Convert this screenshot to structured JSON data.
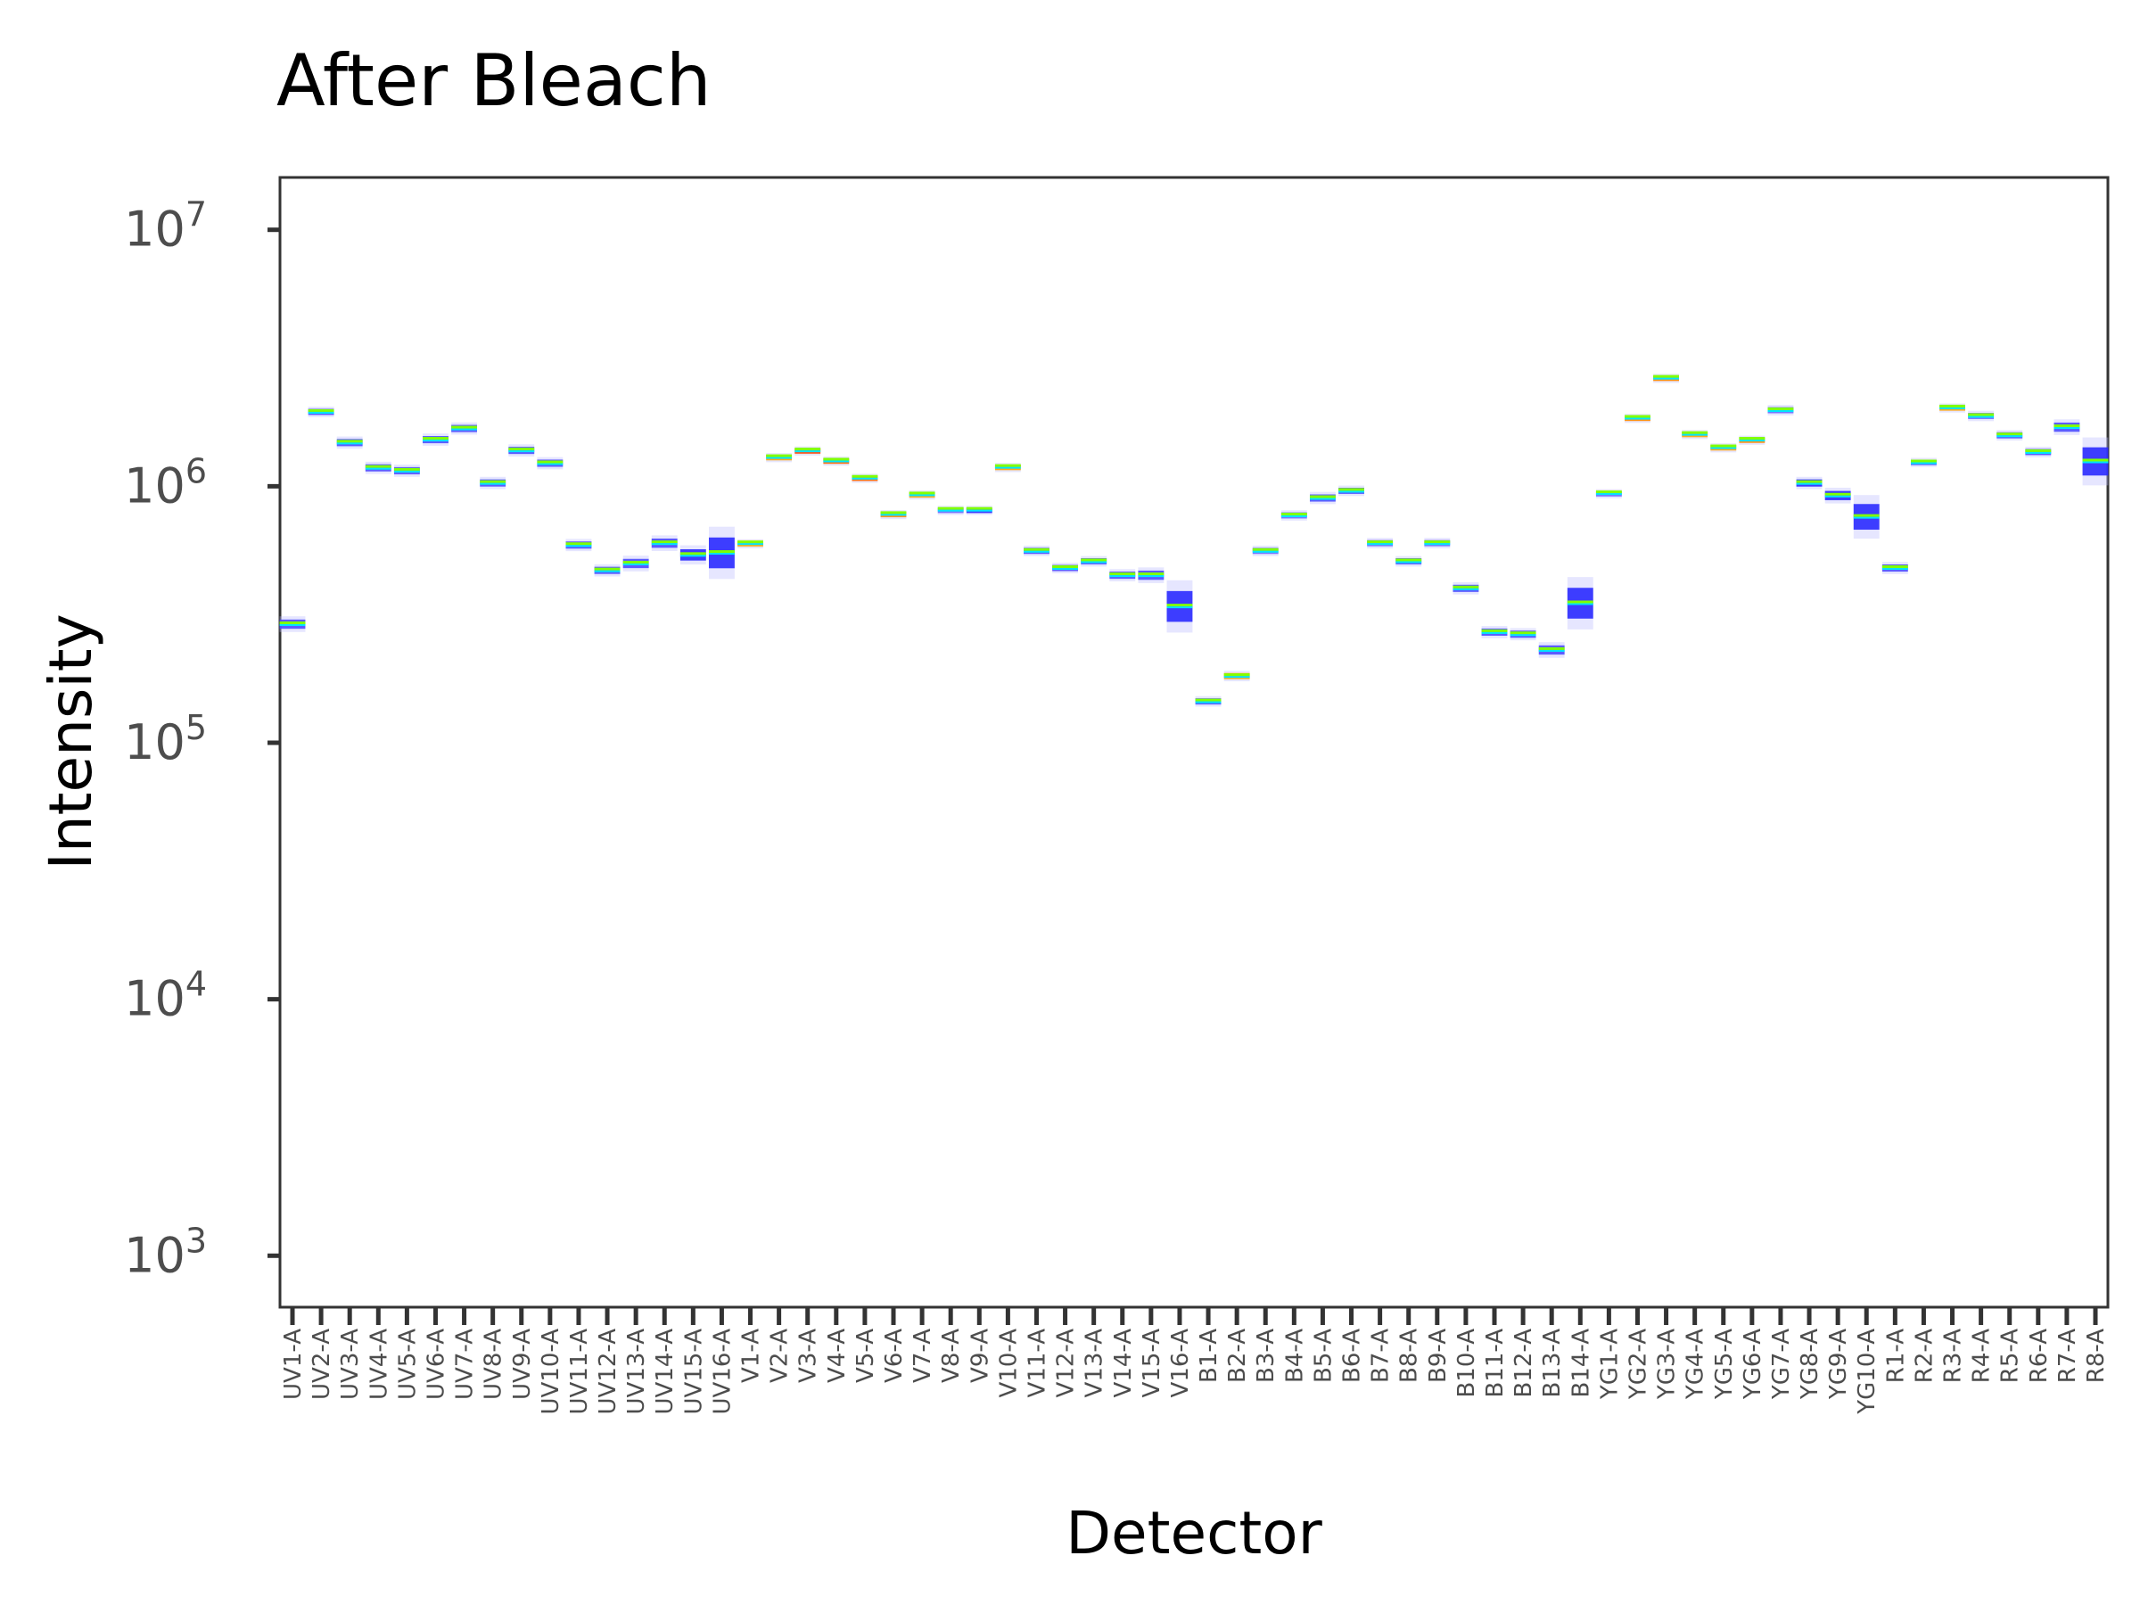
{
  "chart_data": {
    "type": "heatmap",
    "title": "After Bleach",
    "xlabel": "Detector",
    "ylabel": "Intensity",
    "y_scale": "log10",
    "ylim": [
      630,
      16000000
    ],
    "y_ticks": [
      {
        "value": 1000,
        "base": "10",
        "exp": "3"
      },
      {
        "value": 10000,
        "base": "10",
        "exp": "4"
      },
      {
        "value": 100000,
        "base": "10",
        "exp": "5"
      },
      {
        "value": 1000000,
        "base": "10",
        "exp": "6"
      },
      {
        "value": 10000000,
        "base": "10",
        "exp": "7"
      }
    ],
    "palette": {
      "low": "#ffffff",
      "mid1": "#9f9fff",
      "mid2": "#0000ff",
      "high1": "#00ffff",
      "high2": "#7fff00",
      "top1": "#ffa500",
      "top2": "#ff0000"
    },
    "detectors": [
      {
        "name": "UV1-A",
        "median": 290000,
        "spread": 0.018,
        "color": "#4d4dff"
      },
      {
        "name": "UV2-A",
        "median": 1950000,
        "spread": 0.012,
        "color": "#4d4dff"
      },
      {
        "name": "UV3-A",
        "median": 1480000,
        "spread": 0.014,
        "color": "#4d4dff"
      },
      {
        "name": "UV4-A",
        "median": 1180000,
        "spread": 0.014,
        "color": "#4d4dff"
      },
      {
        "name": "UV5-A",
        "median": 1150000,
        "spread": 0.014,
        "color": "#4d4dff"
      },
      {
        "name": "UV6-A",
        "median": 1520000,
        "spread": 0.014,
        "color": "#4d4dff"
      },
      {
        "name": "UV7-A",
        "median": 1680000,
        "spread": 0.014,
        "color": "#4d4dff"
      },
      {
        "name": "UV8-A",
        "median": 1030000,
        "spread": 0.014,
        "color": "#4d4dff"
      },
      {
        "name": "UV9-A",
        "median": 1380000,
        "spread": 0.014,
        "color": "#4d4dff"
      },
      {
        "name": "UV10-A",
        "median": 1230000,
        "spread": 0.014,
        "color": "#4d4dff"
      },
      {
        "name": "UV11-A",
        "median": 590000,
        "spread": 0.014,
        "color": "#4d4dff"
      },
      {
        "name": "UV12-A",
        "median": 470000,
        "spread": 0.014,
        "color": "#4d4dff"
      },
      {
        "name": "UV13-A",
        "median": 500000,
        "spread": 0.018,
        "color": "#4d4dff"
      },
      {
        "name": "UV14-A",
        "median": 600000,
        "spread": 0.018,
        "color": "#4d4dff"
      },
      {
        "name": "UV15-A",
        "median": 540000,
        "spread": 0.022,
        "color": "#2a2aff"
      },
      {
        "name": "UV16-A",
        "median": 550000,
        "spread": 0.06,
        "color": "#2a2aff"
      },
      {
        "name": "V1-A",
        "median": 600000,
        "spread": 0.008,
        "color": "#ffa500"
      },
      {
        "name": "V2-A",
        "median": 1300000,
        "spread": 0.008,
        "color": "#ffa500"
      },
      {
        "name": "V3-A",
        "median": 1380000,
        "spread": 0.008,
        "color": "#ff4500"
      },
      {
        "name": "V4-A",
        "median": 1260000,
        "spread": 0.008,
        "color": "#ff6a00"
      },
      {
        "name": "V5-A",
        "median": 1080000,
        "spread": 0.008,
        "color": "#ff6a00"
      },
      {
        "name": "V6-A",
        "median": 780000,
        "spread": 0.008,
        "color": "#ff8c00"
      },
      {
        "name": "V7-A",
        "median": 930000,
        "spread": 0.008,
        "color": "#ffa500"
      },
      {
        "name": "V8-A",
        "median": 810000,
        "spread": 0.008,
        "color": "#6a6aff"
      },
      {
        "name": "V9-A",
        "median": 810000,
        "spread": 0.008,
        "color": "#2a2aff"
      },
      {
        "name": "V10-A",
        "median": 1190000,
        "spread": 0.008,
        "color": "#ffa500"
      },
      {
        "name": "V11-A",
        "median": 560000,
        "spread": 0.012,
        "color": "#4d4dff"
      },
      {
        "name": "V12-A",
        "median": 480000,
        "spread": 0.012,
        "color": "#4d4dff"
      },
      {
        "name": "V13-A",
        "median": 510000,
        "spread": 0.012,
        "color": "#4d4dff"
      },
      {
        "name": "V14-A",
        "median": 450000,
        "spread": 0.014,
        "color": "#4d4dff"
      },
      {
        "name": "V15-A",
        "median": 450000,
        "spread": 0.018,
        "color": "#4d4dff"
      },
      {
        "name": "V16-A",
        "median": 340000,
        "spread": 0.06,
        "color": "#2a2aff"
      },
      {
        "name": "B1-A",
        "median": 145000,
        "spread": 0.012,
        "color": "#4d4dff"
      },
      {
        "name": "B2-A",
        "median": 182000,
        "spread": 0.012,
        "color": "#ffa500"
      },
      {
        "name": "B3-A",
        "median": 560000,
        "spread": 0.012,
        "color": "#6a6aff"
      },
      {
        "name": "B4-A",
        "median": 770000,
        "spread": 0.012,
        "color": "#6a6aff"
      },
      {
        "name": "B5-A",
        "median": 900000,
        "spread": 0.014,
        "color": "#4d4dff"
      },
      {
        "name": "B6-A",
        "median": 960000,
        "spread": 0.012,
        "color": "#4d4dff"
      },
      {
        "name": "B7-A",
        "median": 600000,
        "spread": 0.012,
        "color": "#6a6aff"
      },
      {
        "name": "B8-A",
        "median": 510000,
        "spread": 0.012,
        "color": "#4d4dff"
      },
      {
        "name": "B9-A",
        "median": 600000,
        "spread": 0.012,
        "color": "#6a6aff"
      },
      {
        "name": "B10-A",
        "median": 400000,
        "spread": 0.014,
        "color": "#4d4dff"
      },
      {
        "name": "B11-A",
        "median": 270000,
        "spread": 0.014,
        "color": "#4d4dff"
      },
      {
        "name": "B12-A",
        "median": 265000,
        "spread": 0.014,
        "color": "#4d4dff"
      },
      {
        "name": "B13-A",
        "median": 230000,
        "spread": 0.018,
        "color": "#4d4dff"
      },
      {
        "name": "B14-A",
        "median": 350000,
        "spread": 0.06,
        "color": "#2a2aff"
      },
      {
        "name": "YG1-A",
        "median": 940000,
        "spread": 0.008,
        "color": "#6a6aff"
      },
      {
        "name": "YG2-A",
        "median": 1850000,
        "spread": 0.008,
        "color": "#ff8c00"
      },
      {
        "name": "YG3-A",
        "median": 2650000,
        "spread": 0.008,
        "color": "#ff8c00"
      },
      {
        "name": "YG4-A",
        "median": 1600000,
        "spread": 0.008,
        "color": "#ffa500"
      },
      {
        "name": "YG5-A",
        "median": 1420000,
        "spread": 0.008,
        "color": "#ffa500"
      },
      {
        "name": "YG6-A",
        "median": 1520000,
        "spread": 0.008,
        "color": "#ff8c00"
      },
      {
        "name": "YG7-A",
        "median": 1980000,
        "spread": 0.012,
        "color": "#6a6aff"
      },
      {
        "name": "YG8-A",
        "median": 1030000,
        "spread": 0.014,
        "color": "#2a2aff"
      },
      {
        "name": "YG9-A",
        "median": 920000,
        "spread": 0.018,
        "color": "#2a2aff"
      },
      {
        "name": "YG10-A",
        "median": 760000,
        "spread": 0.05,
        "color": "#2a2aff"
      },
      {
        "name": "R1-A",
        "median": 480000,
        "spread": 0.014,
        "color": "#4d4dff"
      },
      {
        "name": "R2-A",
        "median": 1240000,
        "spread": 0.01,
        "color": "#4d4dff"
      },
      {
        "name": "R3-A",
        "median": 2030000,
        "spread": 0.008,
        "color": "#ffa500"
      },
      {
        "name": "R4-A",
        "median": 1880000,
        "spread": 0.012,
        "color": "#6a6aff"
      },
      {
        "name": "R5-A",
        "median": 1580000,
        "spread": 0.012,
        "color": "#4d4dff"
      },
      {
        "name": "R6-A",
        "median": 1360000,
        "spread": 0.012,
        "color": "#4d4dff"
      },
      {
        "name": "R7-A",
        "median": 1700000,
        "spread": 0.018,
        "color": "#4d4dff"
      },
      {
        "name": "R8-A",
        "median": 1250000,
        "spread": 0.055,
        "color": "#2a2aff"
      }
    ]
  }
}
